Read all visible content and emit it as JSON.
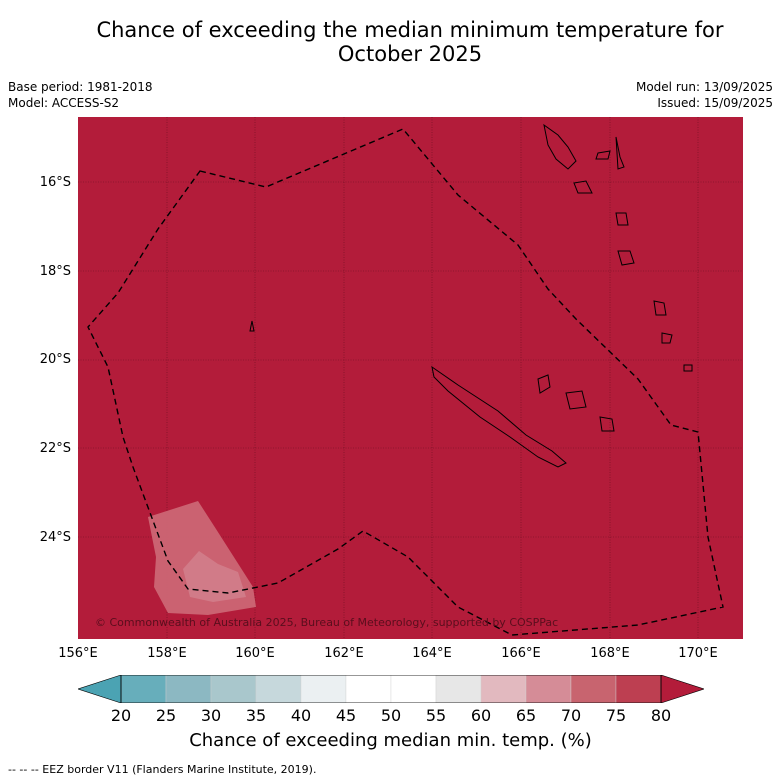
{
  "header": {
    "title_line1": "Chance of exceeding the median minimum temperature for",
    "title_line2": "October 2025",
    "base_period": "Base period: 1981-2018",
    "model": "Model: ACCESS-S2",
    "model_run": "Model run: 13/09/2025",
    "issued": "Issued: 15/09/2025"
  },
  "map": {
    "lat_labels": [
      "16°S",
      "18°S",
      "20°S",
      "22°S",
      "24°S"
    ],
    "lon_labels": [
      "156°E",
      "158°E",
      "160°E",
      "162°E",
      "164°E",
      "166°E",
      "168°E",
      "170°E"
    ],
    "copyright": "© Commonwealth of Australia 2025, Bureau of Meteorology, supported by COSPPac",
    "background_color": "#b31c3a"
  },
  "colorbar": {
    "ticks": [
      "20",
      "25",
      "30",
      "35",
      "40",
      "45",
      "50",
      "55",
      "60",
      "65",
      "70",
      "75",
      "80"
    ],
    "label": "Chance of exceeding median min. temp. (%)",
    "colors": [
      "#67aebb",
      "#8cb8c2",
      "#a9c7cc",
      "#c6d8dc",
      "#ebf0f2",
      "#ffffff",
      "#ffffff",
      "#e7e7e7",
      "#e2b9bf",
      "#d58c97",
      "#c8646f",
      "#bd3f51"
    ],
    "under_color": "#4ba3b3",
    "over_color": "#b31c3a"
  },
  "legend": {
    "eez": "--  --  -- EEZ border V11 (Flanders Marine Institute, 2019)."
  }
}
